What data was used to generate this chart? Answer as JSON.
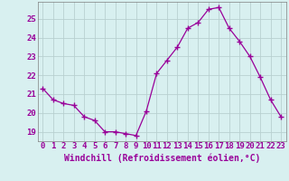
{
  "x": [
    0,
    1,
    2,
    3,
    4,
    5,
    6,
    7,
    8,
    9,
    10,
    11,
    12,
    13,
    14,
    15,
    16,
    17,
    18,
    19,
    20,
    21,
    22,
    23
  ],
  "y": [
    21.3,
    20.7,
    20.5,
    20.4,
    19.8,
    19.6,
    19.0,
    19.0,
    18.9,
    18.8,
    20.1,
    22.1,
    22.8,
    23.5,
    24.5,
    24.8,
    25.5,
    25.6,
    24.5,
    23.8,
    23.0,
    21.9,
    20.7,
    19.8
  ],
  "line_color": "#990099",
  "marker": "+",
  "markersize": 4,
  "linewidth": 0.9,
  "bg_color": "#d8f0f0",
  "grid_color": "#b8d0d0",
  "xlabel": "Windchill (Refroidissement éolien,°C)",
  "xlabel_fontsize": 7,
  "yticks": [
    19,
    20,
    21,
    22,
    23,
    24,
    25
  ],
  "ylim": [
    18.5,
    25.9
  ],
  "xlim": [
    -0.5,
    23.5
  ],
  "tick_label_fontsize": 6.5,
  "axes_color": "#606060",
  "spine_color": "#808080"
}
